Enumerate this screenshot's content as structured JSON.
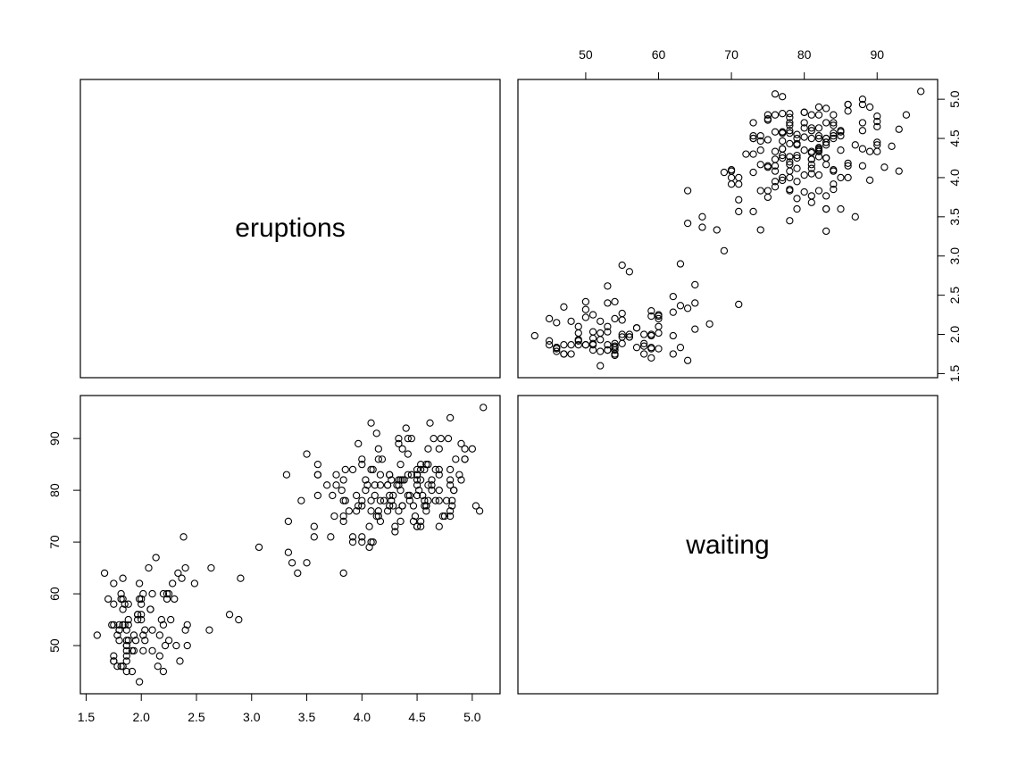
{
  "chart_data": {
    "type": "scatter",
    "variables": [
      "eruptions",
      "waiting"
    ],
    "ranges": {
      "eruptions": [
        1.6,
        5.1
      ],
      "waiting": [
        43,
        96
      ]
    },
    "ticks": {
      "eruptions": [
        "1.5",
        "2.0",
        "2.5",
        "3.0",
        "3.5",
        "4.0",
        "4.5",
        "5.0"
      ],
      "waiting": [
        "50",
        "60",
        "70",
        "80",
        "90"
      ]
    },
    "data": {
      "eruptions": [
        3.6,
        1.8,
        3.333,
        2.283,
        4.533,
        2.883,
        4.7,
        3.6,
        1.95,
        4.35,
        1.833,
        3.917,
        4.2,
        1.75,
        4.7,
        2.167,
        1.75,
        4.8,
        1.6,
        4.25,
        1.8,
        1.75,
        3.45,
        3.067,
        4.533,
        3.6,
        1.967,
        4.083,
        3.85,
        4.433,
        4.3,
        4.467,
        3.367,
        4.033,
        3.833,
        2.017,
        1.867,
        4.833,
        1.833,
        4.783,
        4.35,
        1.883,
        4.567,
        1.75,
        4.533,
        3.317,
        3.833,
        2.1,
        4.633,
        2,
        4.8,
        4.716,
        1.833,
        4.833,
        1.733,
        4.883,
        3.717,
        1.667,
        4.567,
        4.317,
        2.233,
        4.5,
        1.75,
        4.8,
        1.817,
        4.4,
        4.167,
        4.7,
        2.067,
        4.7,
        4.033,
        1.967,
        4.5,
        4,
        1.983,
        5.067,
        2.017,
        4.567,
        3.883,
        3.6,
        4.133,
        4.333,
        4.1,
        2.633,
        4.067,
        4.933,
        3.95,
        4.517,
        2.167,
        4,
        2.2,
        4.333,
        1.867,
        4.817,
        1.833,
        4.3,
        4.667,
        3.75,
        1.867,
        4.9,
        2.483,
        4.367,
        2.1,
        4.5,
        4.05,
        1.867,
        4.7,
        1.783,
        4.85,
        3.683,
        4.733,
        2.3,
        4.9,
        4.417,
        1.7,
        4.633,
        2.317,
        4.6,
        1.817,
        4.417,
        2.617,
        4.067,
        4.25,
        1.967,
        4.6,
        3.767,
        1.917,
        4.5,
        2.267,
        4.65,
        1.867,
        4.167,
        2.8,
        4.333,
        1.833,
        4.383,
        1.883,
        4.933,
        2.033,
        3.733,
        4.233,
        2.233,
        4.533,
        4.817,
        4.333,
        1.983,
        4.633,
        2.017,
        5.1,
        1.8,
        5.033,
        4,
        2.4,
        4.6,
        3.567,
        4,
        4.5,
        4.083,
        1.8,
        3.967,
        2.2,
        4.15,
        2,
        3.833,
        3.5,
        4.583,
        2.367,
        5,
        1.933,
        4.617,
        1.917,
        2.083,
        4.583,
        3.333,
        4.167,
        4.333,
        4.5,
        2.417,
        4,
        4.167,
        1.883,
        4.583,
        4.25,
        3.767,
        2.033,
        4.433,
        4.083,
        1.833,
        4.417,
        2.183,
        4.8,
        1.833,
        4.8,
        4.1,
        3.966,
        4.233,
        3.5,
        4.366,
        2.25,
        4.667,
        2.1,
        4.35,
        4.133,
        1.867,
        4.6,
        1.783,
        4.367,
        3.85,
        1.933,
        4.5,
        2.383,
        4.7,
        1.867,
        3.833,
        3.417,
        4.233,
        2.4,
        4.8,
        2,
        4.15,
        1.867,
        4.267,
        1.75,
        4.483,
        4,
        4.117,
        4.083,
        4.267,
        3.917,
        4.55,
        4.083,
        2.417,
        4.183,
        2.217,
        4.45,
        1.883,
        1.85,
        4.283,
        3.95,
        2.333,
        4.15,
        2.35,
        4.933,
        2.9,
        4.583,
        3.833,
        2.083,
        4.367,
        2.133,
        4.35,
        2.2,
        4.45,
        3.567,
        4.5,
        4.15,
        3.817,
        3.917,
        4.45,
        2,
        4.283,
        4.767,
        4.533,
        1.85,
        4.25,
        1.983,
        2.25,
        4.75,
        4.117,
        2.15,
        4.417,
        1.817,
        4.467
      ],
      "waiting": [
        79,
        54,
        74,
        62,
        85,
        55,
        88,
        85,
        51,
        85,
        54,
        84,
        78,
        47,
        83,
        52,
        62,
        84,
        52,
        79,
        51,
        47,
        78,
        69,
        74,
        83,
        55,
        76,
        78,
        79,
        73,
        77,
        66,
        80,
        74,
        52,
        48,
        80,
        59,
        90,
        80,
        58,
        84,
        58,
        73,
        83,
        64,
        53,
        82,
        59,
        75,
        90,
        54,
        80,
        54,
        83,
        71,
        64,
        77,
        81,
        59,
        84,
        48,
        82,
        60,
        92,
        78,
        78,
        65,
        73,
        82,
        56,
        79,
        71,
        62,
        76,
        60,
        78,
        76,
        83,
        75,
        82,
        70,
        65,
        73,
        88,
        76,
        80,
        48,
        86,
        60,
        90,
        50,
        78,
        63,
        72,
        84,
        75,
        51,
        82,
        62,
        88,
        49,
        83,
        81,
        47,
        84,
        52,
        86,
        81,
        75,
        59,
        89,
        79,
        59,
        81,
        50,
        85,
        59,
        87,
        53,
        69,
        77,
        56,
        88,
        81,
        45,
        82,
        55,
        90,
        45,
        83,
        56,
        89,
        46,
        82,
        51,
        86,
        53,
        79,
        81,
        60,
        82,
        77,
        76,
        59,
        80,
        49,
        96,
        53,
        77,
        77,
        65,
        81,
        71,
        70,
        81,
        93,
        53,
        89,
        45,
        86,
        58,
        78,
        66,
        76,
        63,
        88,
        52,
        93,
        49,
        57,
        77,
        68,
        81,
        81,
        73,
        50,
        85,
        74,
        55,
        77,
        83,
        83,
        51,
        78,
        84,
        46,
        83,
        55,
        81,
        57,
        76,
        84,
        77,
        81,
        87,
        77,
        51,
        78,
        60,
        82,
        91,
        53,
        78,
        46,
        77,
        84,
        49,
        83,
        71,
        80,
        49,
        75,
        64,
        76,
        53,
        94,
        55,
        76,
        50,
        82,
        54,
        75,
        78,
        79,
        78,
        78,
        70,
        79,
        70,
        54,
        86,
        50,
        90,
        54,
        54,
        77,
        79,
        64,
        75,
        47,
        86,
        63,
        85,
        82,
        57,
        82,
        67,
        74,
        54,
        83,
        73,
        73,
        88,
        80,
        71,
        83,
        56,
        79,
        78,
        84,
        58,
        83,
        43,
        60,
        75,
        81,
        46,
        90,
        46,
        74
      ]
    }
  },
  "panels": {
    "top_left_label": "eruptions",
    "bottom_right_label": "waiting"
  }
}
